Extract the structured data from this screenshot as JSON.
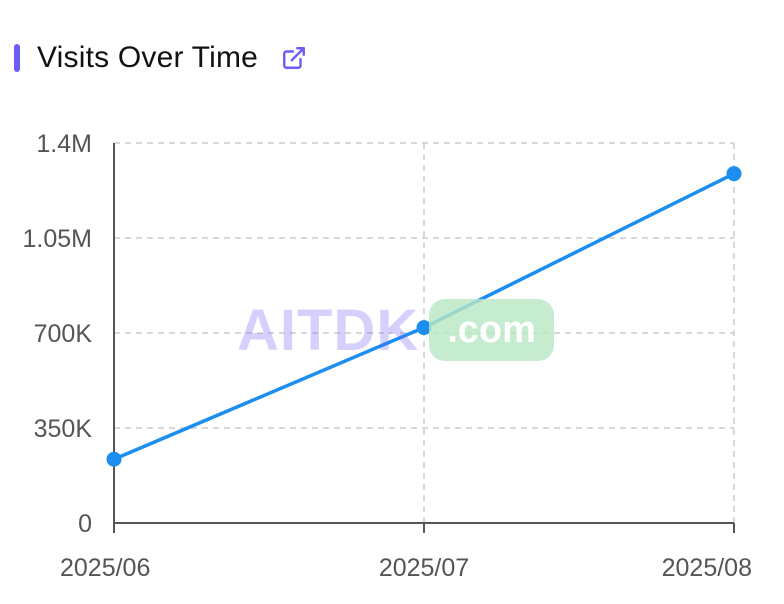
{
  "header": {
    "title": "Visits Over Time",
    "icon": "external-link-icon"
  },
  "watermark": {
    "brand": "AITDK",
    "suffix": ".com"
  },
  "colors": {
    "accent": "#6b5cf6",
    "series": "#1b8ef0",
    "grid": "#cccccc",
    "axis": "#555555"
  },
  "chart_data": {
    "type": "line",
    "title": "",
    "xlabel": "",
    "ylabel": "",
    "categories": [
      "2025/06",
      "2025/07",
      "2025/08"
    ],
    "series": [
      {
        "values": [
          235000,
          720000,
          1287000
        ]
      }
    ],
    "ylim": [
      0,
      1400000
    ],
    "yticks": [
      0,
      350000,
      700000,
      1050000,
      1400000
    ],
    "ytick_labels": [
      "0",
      "350K",
      "700K",
      "1.05M",
      "1.4M"
    ],
    "grid": true,
    "legend": "none"
  }
}
